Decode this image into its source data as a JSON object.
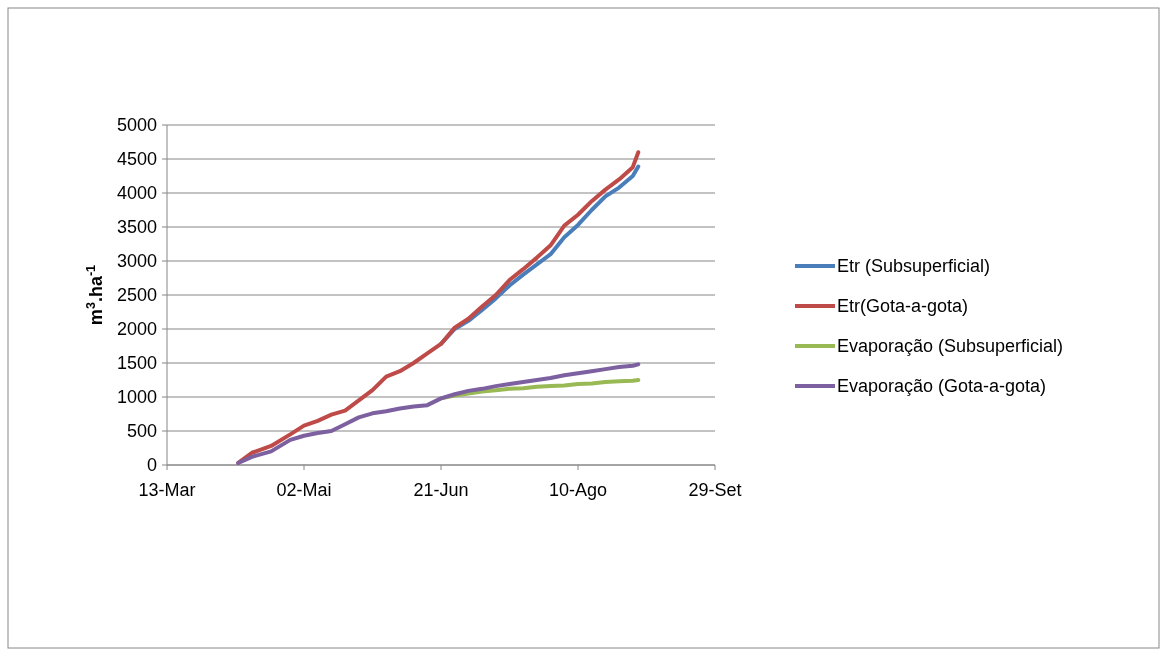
{
  "chart_data": {
    "type": "line",
    "ylabel": "m$^{3}$.ha$^{-1}$",
    "x": [
      "--04-08",
      "--04-13",
      "--04-20",
      "--04-27",
      "--05-02",
      "--05-07",
      "--05-12",
      "--05-17",
      "--05-22",
      "--05-27",
      "--06-01",
      "--06-06",
      "--06-11",
      "--06-16",
      "--06-21",
      "--06-26",
      "--07-01",
      "--07-06",
      "--07-11",
      "--07-16",
      "--07-21",
      "--07-26",
      "--07-31",
      "--08-05",
      "--08-10",
      "--08-15",
      "--08-20",
      "--08-25",
      "--08-30",
      "--09-01"
    ],
    "series": [
      {
        "name": "Etr (Subsuperficial)",
        "color": "#4a7ebb",
        "values": [
          null,
          null,
          null,
          null,
          null,
          null,
          null,
          null,
          null,
          null,
          null,
          null,
          null,
          null,
          1780,
          2000,
          2120,
          2280,
          2450,
          2640,
          2800,
          2950,
          3100,
          3350,
          3530,
          3750,
          3950,
          4080,
          4250,
          4390
        ]
      },
      {
        "name": "Etr(Gota-a-gota)",
        "color": "#be4b48",
        "values": [
          30,
          180,
          280,
          450,
          580,
          650,
          740,
          800,
          950,
          1100,
          1300,
          1380,
          1500,
          1640,
          1780,
          2020,
          2150,
          2330,
          2500,
          2720,
          2880,
          3050,
          3230,
          3520,
          3680,
          3880,
          4050,
          4200,
          4380,
          4600
        ]
      },
      {
        "name": "Evaporação (Subsuperficial)",
        "color": "#98b954",
        "values": [
          null,
          null,
          null,
          null,
          null,
          null,
          null,
          null,
          null,
          null,
          null,
          null,
          null,
          null,
          980,
          1020,
          1050,
          1080,
          1100,
          1120,
          1130,
          1150,
          1160,
          1170,
          1190,
          1200,
          1220,
          1230,
          1240,
          1250
        ]
      },
      {
        "name": "Evaporação (Gota-a-gota)",
        "color": "#7d60a0",
        "values": [
          30,
          120,
          200,
          370,
          430,
          470,
          500,
          600,
          700,
          760,
          790,
          830,
          860,
          880,
          980,
          1040,
          1090,
          1120,
          1160,
          1190,
          1220,
          1250,
          1280,
          1320,
          1350,
          1380,
          1410,
          1440,
          1460,
          1480
        ]
      }
    ],
    "xlim": [
      "--03-13",
      "--09-29"
    ],
    "xticks": [
      {
        "value": "--03-13",
        "label": "13-Mar"
      },
      {
        "value": "--05-02",
        "label": "02-Mai"
      },
      {
        "value": "--06-21",
        "label": "21-Jun"
      },
      {
        "value": "--08-10",
        "label": "10-Ago"
      },
      {
        "value": "--09-29",
        "label": "29-Set"
      }
    ],
    "ylim": [
      0,
      5000
    ],
    "yticks": [
      0,
      500,
      1000,
      1500,
      2000,
      2500,
      3000,
      3500,
      4000,
      4500,
      5000
    ],
    "grid": "y",
    "legend": "right",
    "line_style": "solid",
    "marker": "none"
  }
}
